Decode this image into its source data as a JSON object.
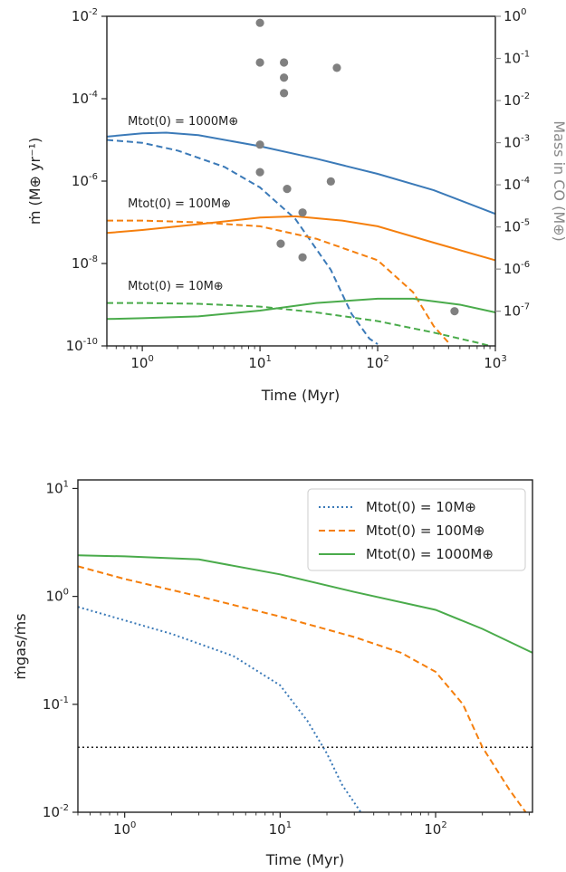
{
  "colors": {
    "blue": "#3b7ab8",
    "orange": "#f57f0d",
    "green": "#4aab4b",
    "gray": "#808080",
    "black": "#222222"
  },
  "chart_data": [
    {
      "type": "line",
      "xlabel": "Time (Myr)",
      "ylabel": "ṁ  (M⊕ yr⁻¹)",
      "ylabel_right": "Mass in CO (M⊕)",
      "xscale": "log",
      "yscale": "log",
      "xlim": [
        0.5,
        1000
      ],
      "ylim": [
        1e-10,
        0.01
      ],
      "ylim_right": [
        1.5e-08,
        1
      ],
      "xticks": [
        1,
        10,
        100,
        1000
      ],
      "yticks": [
        1e-10,
        1e-08,
        1e-06,
        0.0001,
        0.01
      ],
      "yticks_right": [
        1e-07,
        1e-06,
        1e-05,
        0.0001,
        0.001,
        0.01,
        0.1,
        1
      ],
      "annotations": [
        {
          "text": "Mtot(0) = 1000M⊕",
          "x": 1.0,
          "y": 2.3e-05
        },
        {
          "text": "Mtot(0) = 100M⊕",
          "x": 1.0,
          "y": 2.3e-07
        },
        {
          "text": "Mtot(0) = 10M⊕",
          "x": 1.0,
          "y": 2.3e-09
        }
      ],
      "series": [
        {
          "color": "blue",
          "style": "solid",
          "points": [
            [
              0.5,
              1.2e-05
            ],
            [
              1,
              1.45e-05
            ],
            [
              1.6,
              1.5e-05
            ],
            [
              3,
              1.3e-05
            ],
            [
              10,
              7e-06
            ],
            [
              30,
              3.5e-06
            ],
            [
              100,
              1.5e-06
            ],
            [
              300,
              6e-07
            ],
            [
              1000,
              1.6e-07
            ]
          ]
        },
        {
          "color": "blue",
          "style": "dashed",
          "points": [
            [
              0.5,
              1e-05
            ],
            [
              1,
              8.5e-06
            ],
            [
              2,
              5.5e-06
            ],
            [
              5,
              2.2e-06
            ],
            [
              10,
              7e-07
            ],
            [
              20,
              1.2e-07
            ],
            [
              40,
              7e-09
            ],
            [
              60,
              6e-10
            ],
            [
              85,
              1.5e-10
            ],
            [
              100,
              1.1e-10
            ]
          ]
        },
        {
          "color": "orange",
          "style": "solid",
          "points": [
            [
              0.5,
              5.5e-08
            ],
            [
              1,
              6.5e-08
            ],
            [
              3,
              9e-08
            ],
            [
              10,
              1.3e-07
            ],
            [
              20,
              1.4e-07
            ],
            [
              50,
              1.1e-07
            ],
            [
              100,
              8e-08
            ],
            [
              300,
              3.2e-08
            ],
            [
              1000,
              1.2e-08
            ]
          ]
        },
        {
          "color": "orange",
          "style": "dashed",
          "points": [
            [
              0.5,
              1.1e-07
            ],
            [
              1,
              1.1e-07
            ],
            [
              3,
              1e-07
            ],
            [
              10,
              8e-08
            ],
            [
              30,
              4e-08
            ],
            [
              100,
              1.2e-08
            ],
            [
              200,
              2e-09
            ],
            [
              300,
              3e-10
            ],
            [
              400,
              1.2e-10
            ]
          ]
        },
        {
          "color": "green",
          "style": "solid",
          "points": [
            [
              0.5,
              4.5e-10
            ],
            [
              1,
              4.7e-10
            ],
            [
              3,
              5.2e-10
            ],
            [
              10,
              7.2e-10
            ],
            [
              30,
              1.1e-09
            ],
            [
              100,
              1.4e-09
            ],
            [
              200,
              1.4e-09
            ],
            [
              500,
              1e-09
            ],
            [
              1000,
              6.5e-10
            ]
          ]
        },
        {
          "color": "green",
          "style": "dashed",
          "points": [
            [
              0.5,
              1.1e-09
            ],
            [
              1,
              1.1e-09
            ],
            [
              3,
              1.05e-09
            ],
            [
              10,
              9e-10
            ],
            [
              30,
              6.5e-10
            ],
            [
              100,
              4e-10
            ],
            [
              300,
              2.1e-10
            ],
            [
              700,
              1.2e-10
            ],
            [
              900,
              1e-10
            ]
          ]
        }
      ],
      "scatter": {
        "axis": "right",
        "color": "gray",
        "points": [
          [
            10,
            0.7
          ],
          [
            10,
            0.08
          ],
          [
            16,
            0.08
          ],
          [
            16,
            0.035
          ],
          [
            16,
            0.015
          ],
          [
            45,
            0.06
          ],
          [
            10,
            0.0009
          ],
          [
            10,
            0.0002
          ],
          [
            17,
            8e-05
          ],
          [
            40,
            0.00012
          ],
          [
            23,
            2.2e-05
          ],
          [
            15,
            4e-06
          ],
          [
            23,
            1.9e-06
          ],
          [
            450,
            1e-07
          ]
        ]
      }
    },
    {
      "type": "line",
      "xlabel": "Time (Myr)",
      "ylabel": "ṁgas/ṁs",
      "xscale": "log",
      "yscale": "log",
      "xlim": [
        0.5,
        420
      ],
      "ylim": [
        0.01,
        12
      ],
      "xticks": [
        1,
        10,
        100
      ],
      "yticks": [
        0.01,
        0.1,
        1,
        10
      ],
      "legend": "top-right",
      "hline": {
        "y": 0.04,
        "style": "dotted",
        "color": "black"
      },
      "series": [
        {
          "name": "Mtot(0) = 10M⊕",
          "color": "blue",
          "style": "dotted",
          "points": [
            [
              0.5,
              0.8
            ],
            [
              1,
              0.6
            ],
            [
              2,
              0.45
            ],
            [
              5,
              0.28
            ],
            [
              10,
              0.15
            ],
            [
              15,
              0.07
            ],
            [
              20,
              0.035
            ],
            [
              25,
              0.018
            ],
            [
              33,
              0.01
            ]
          ]
        },
        {
          "name": "Mtot(0) = 100M⊕",
          "color": "orange",
          "style": "dashed",
          "points": [
            [
              0.5,
              1.9
            ],
            [
              1,
              1.45
            ],
            [
              3,
              1.0
            ],
            [
              10,
              0.65
            ],
            [
              30,
              0.42
            ],
            [
              60,
              0.3
            ],
            [
              100,
              0.2
            ],
            [
              150,
              0.1
            ],
            [
              200,
              0.04
            ],
            [
              300,
              0.016
            ],
            [
              380,
              0.01
            ]
          ]
        },
        {
          "name": "Mtot(0) = 1000M⊕",
          "color": "green",
          "style": "solid",
          "points": [
            [
              0.5,
              2.4
            ],
            [
              1,
              2.35
            ],
            [
              3,
              2.2
            ],
            [
              10,
              1.6
            ],
            [
              30,
              1.1
            ],
            [
              100,
              0.75
            ],
            [
              200,
              0.5
            ],
            [
              420,
              0.3
            ]
          ]
        }
      ]
    }
  ]
}
